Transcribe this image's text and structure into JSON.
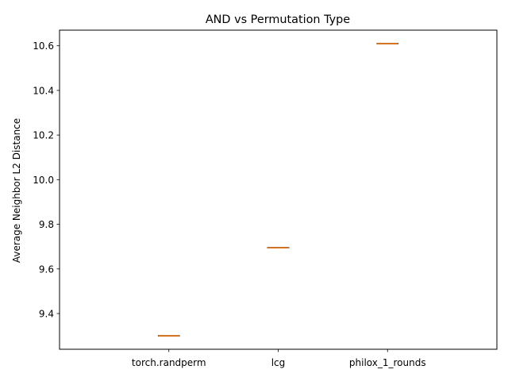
{
  "chart_data": {
    "type": "box",
    "title": "AND vs Permutation Type",
    "xlabel": "",
    "ylabel": "Average Neighbor L2 Distance",
    "categories": [
      "torch.randperm",
      "lcg",
      "philox_1_rounds"
    ],
    "values": [
      9.3,
      9.695,
      10.61
    ],
    "ylim": [
      9.24,
      10.67
    ],
    "yticks": [
      9.4,
      9.6,
      9.8,
      10.0,
      10.2,
      10.4,
      10.6
    ],
    "ytick_labels": [
      "9.4",
      "9.6",
      "9.8",
      "10.0",
      "10.2",
      "10.4",
      "10.6"
    ],
    "grid": false,
    "legend": "none",
    "colors": {
      "box": "#000000",
      "median": "#ff7f0e",
      "axes": "#000000"
    }
  }
}
